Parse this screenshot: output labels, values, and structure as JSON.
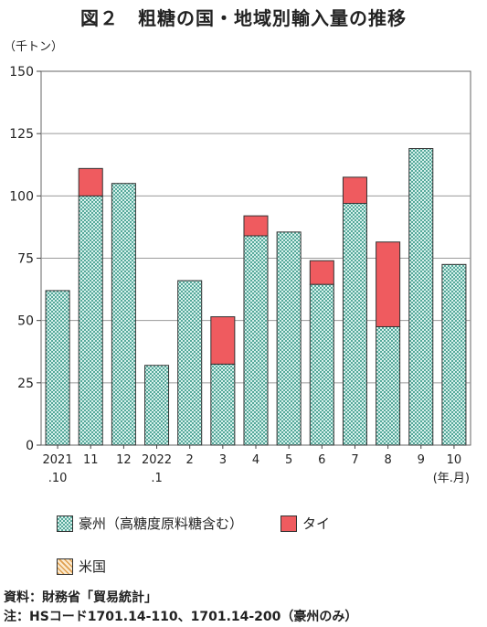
{
  "title": "図２　粗糖の国・地域別輸入量の推移",
  "unit_label": "（千トン）",
  "x_unit_label": "(年.月)",
  "legend": [
    {
      "label": "豪州（高糖度原料糖含む）",
      "color": "#8fd6c8",
      "pattern": "check"
    },
    {
      "label": "タイ",
      "color": "#ef5b5f",
      "pattern": "solid"
    },
    {
      "label": "米国",
      "color": "#f6cf9a",
      "pattern": "hatch"
    }
  ],
  "source_line": "資料：財務省「貿易統計」",
  "note_line": "注：HSコード1701.14-110、1701.14-200（豪州のみ）",
  "chart_data": {
    "type": "bar",
    "stacked": true,
    "categories": [
      "2021\n.10",
      "11",
      "12",
      "2022\n.1",
      "2",
      "3",
      "4",
      "5",
      "6",
      "7",
      "8",
      "9",
      "10"
    ],
    "series": [
      {
        "name": "豪州（高糖度原料糖含む）",
        "color": "#8fd6c8",
        "values": [
          62,
          100,
          105,
          32,
          66,
          32.5,
          84,
          85.5,
          64.5,
          97,
          47.5,
          119,
          72.5
        ]
      },
      {
        "name": "タイ",
        "color": "#ef5b5f",
        "values": [
          0,
          11,
          0,
          0,
          0,
          19,
          8,
          0,
          9.5,
          10.5,
          34,
          0,
          0
        ]
      },
      {
        "name": "米国",
        "color": "#f6cf9a",
        "values": [
          0,
          0,
          0,
          0,
          0,
          0,
          0,
          0,
          0,
          0,
          0,
          0,
          0
        ]
      }
    ],
    "yticks": [
      0,
      25,
      50,
      75,
      100,
      125,
      150
    ],
    "ylim": [
      0,
      150
    ],
    "grid": true
  }
}
